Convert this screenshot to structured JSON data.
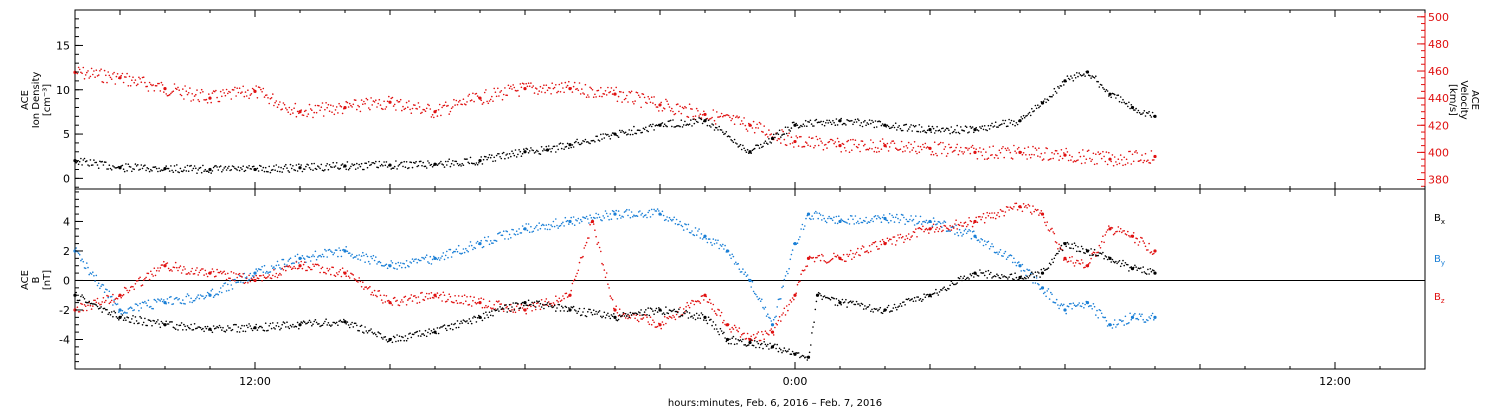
{
  "xlabel": "hours:minutes, Feb.  6, 2016 – Feb.  7, 2016",
  "x_tick_labels": [
    {
      "label": "12:00",
      "hour": 12
    },
    {
      "label": "0:00",
      "hour": 24
    },
    {
      "label": "12:00",
      "hour": 36
    }
  ],
  "x_range_hours": [
    8.0,
    38.0
  ],
  "panels": [
    {
      "id": "top",
      "left_axis": {
        "label_lines": [
          "ACE",
          "Ion Density",
          "[cm⁻³]"
        ],
        "ylim": [
          -1.2,
          19
        ],
        "ticks": [
          0,
          5,
          10,
          15
        ],
        "color": "#000000"
      },
      "right_axis": {
        "label_lines": [
          "ACE",
          "Velocity",
          "[km/s]"
        ],
        "ylim": [
          373,
          505
        ],
        "ticks": [
          380,
          400,
          420,
          440,
          460,
          480,
          500
        ],
        "color": "#e01010"
      }
    },
    {
      "id": "bottom",
      "left_axis": {
        "label_lines": [
          "ACE",
          "B",
          "[nT]"
        ],
        "ylim": [
          -6,
          6.2
        ],
        "ticks": [
          -4,
          -2,
          0,
          2,
          4
        ],
        "color": "#000000"
      },
      "legend": [
        {
          "name": "Bx",
          "base": "B",
          "sub": "x",
          "color": "#000000"
        },
        {
          "name": "By",
          "base": "B",
          "sub": "y",
          "color": "#1a7fd6"
        },
        {
          "name": "Bz",
          "base": "B",
          "sub": "z",
          "color": "#e01010"
        }
      ]
    }
  ],
  "chart_data": {
    "type": "scatter",
    "x_unit": "hours since Feb 6, 2016 00:00",
    "panels": [
      {
        "id": "top",
        "series": [
          {
            "name": "Ion Density",
            "axis": "left",
            "color": "#000000",
            "x": [
              8.0,
              9.0,
              10.0,
              11.0,
              12.0,
              13.0,
              14.0,
              15.0,
              16.0,
              17.0,
              18.0,
              18.5,
              19.0,
              20.0,
              21.0,
              22.0,
              23.0,
              23.5,
              24.0,
              25.0,
              26.0,
              27.0,
              28.0,
              29.0,
              29.5,
              30.0,
              30.5,
              31.0,
              31.5,
              32.0
            ],
            "y": [
              2.0,
              1.2,
              1.1,
              1.0,
              1.0,
              1.2,
              1.4,
              1.5,
              1.6,
              2.0,
              3.0,
              3.2,
              3.8,
              5.0,
              6.0,
              6.5,
              3.0,
              4.5,
              6.0,
              6.5,
              6.0,
              5.5,
              5.5,
              6.5,
              8.5,
              11.0,
              12.0,
              9.5,
              8.0,
              7.0
            ]
          },
          {
            "name": "Velocity",
            "axis": "right",
            "color": "#e01010",
            "x": [
              8.0,
              9.0,
              10.0,
              11.0,
              12.0,
              13.0,
              14.0,
              15.0,
              16.0,
              17.0,
              18.0,
              19.0,
              20.0,
              21.0,
              22.0,
              23.0,
              24.0,
              25.0,
              26.0,
              27.0,
              28.0,
              29.0,
              30.0,
              31.0,
              32.0
            ],
            "y": [
              459,
              455,
              447,
              440,
              445,
              430,
              433,
              437,
              430,
              440,
              447,
              447,
              443,
              435,
              428,
              420,
              408,
              405,
              405,
              403,
              400,
              400,
              398,
              395,
              397
            ]
          }
        ]
      },
      {
        "id": "bottom",
        "series": [
          {
            "name": "Bx",
            "color": "#000000",
            "x": [
              8.0,
              9.0,
              10.0,
              11.0,
              12.0,
              13.0,
              14.0,
              15.0,
              16.0,
              17.0,
              18.0,
              19.0,
              20.0,
              21.0,
              22.0,
              22.5,
              23.0,
              23.5,
              24.0,
              24.3,
              24.5,
              25.0,
              26.0,
              27.0,
              28.0,
              29.0,
              29.5,
              30.0,
              30.5,
              31.0,
              31.5,
              32.0
            ],
            "y": [
              -1.0,
              -2.5,
              -3.0,
              -3.3,
              -3.2,
              -3.0,
              -2.8,
              -4.0,
              -3.5,
              -2.5,
              -1.5,
              -2.0,
              -2.5,
              -2.0,
              -2.5,
              -4.0,
              -4.2,
              -4.5,
              -5.0,
              -5.2,
              -1.0,
              -1.5,
              -2.0,
              -1.0,
              0.5,
              0.2,
              0.5,
              2.5,
              2.0,
              1.5,
              0.8,
              0.5
            ]
          },
          {
            "name": "By",
            "color": "#1a7fd6",
            "x": [
              8.0,
              9.0,
              10.0,
              11.0,
              12.0,
              13.0,
              14.0,
              15.0,
              16.0,
              17.0,
              18.0,
              19.0,
              20.0,
              21.0,
              22.0,
              22.5,
              23.0,
              23.5,
              24.0,
              24.3,
              25.0,
              26.0,
              27.0,
              28.0,
              29.0,
              29.5,
              30.0,
              30.5,
              31.0,
              31.5,
              32.0
            ],
            "y": [
              2.0,
              -2.0,
              -1.5,
              -1.0,
              0.5,
              1.5,
              2.0,
              1.0,
              1.5,
              2.5,
              3.5,
              4.0,
              4.5,
              4.5,
              3.0,
              2.0,
              0.0,
              -3.0,
              2.5,
              4.5,
              4.0,
              4.2,
              4.0,
              3.0,
              1.0,
              -0.5,
              -2.0,
              -1.5,
              -3.0,
              -2.5,
              -2.5
            ]
          },
          {
            "name": "Bz",
            "color": "#e01010",
            "x": [
              8.0,
              9.0,
              10.0,
              11.0,
              12.0,
              13.0,
              14.0,
              15.0,
              16.0,
              17.0,
              18.0,
              19.0,
              19.5,
              20.0,
              21.0,
              22.0,
              22.5,
              23.0,
              23.5,
              24.0,
              24.3,
              25.0,
              26.0,
              27.0,
              28.0,
              29.0,
              29.5,
              30.0,
              30.5,
              31.0,
              31.5,
              32.0
            ],
            "y": [
              -2.0,
              -1.0,
              1.0,
              0.5,
              0.0,
              1.0,
              0.5,
              -1.5,
              -1.0,
              -1.5,
              -2.0,
              -1.0,
              4.0,
              -2.0,
              -3.0,
              -1.0,
              -3.0,
              -4.0,
              -3.5,
              -1.0,
              1.5,
              1.5,
              2.5,
              3.5,
              4.0,
              5.0,
              4.5,
              1.5,
              1.0,
              3.5,
              3.0,
              2.0
            ]
          }
        ]
      }
    ]
  }
}
